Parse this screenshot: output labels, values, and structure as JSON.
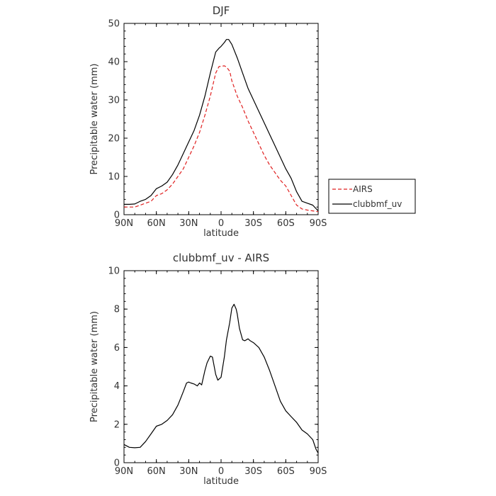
{
  "chart_data": [
    {
      "type": "line",
      "title": "DJF",
      "xlabel": "latitude",
      "ylabel": "Precipitable water (mm)",
      "x_direction": "north-to-south",
      "xlim": [
        90,
        -90
      ],
      "ylim": [
        0,
        50
      ],
      "x_ticks": [
        90,
        60,
        30,
        0,
        -30,
        -60,
        -90
      ],
      "x_tick_labels": [
        "90N",
        "60N",
        "30N",
        "0",
        "30S",
        "60S",
        "90S"
      ],
      "y_ticks": [
        0,
        10,
        20,
        30,
        40,
        50
      ],
      "y_tick_labels": [
        "0",
        "10",
        "20",
        "30",
        "40",
        "50"
      ],
      "legend": "right",
      "series": [
        {
          "name": "AIRS",
          "color": "#e02020",
          "dash": "dashed",
          "x": [
            90,
            85,
            80,
            75,
            70,
            65,
            60,
            55,
            50,
            45,
            40,
            35,
            30,
            25,
            20,
            15,
            10,
            5,
            2,
            0,
            -3,
            -5,
            -8,
            -10,
            -15,
            -20,
            -25,
            -30,
            -35,
            -40,
            -45,
            -50,
            -55,
            -60,
            -63,
            -65,
            -70,
            -75,
            -80,
            -85,
            -90
          ],
          "y": [
            2,
            2,
            2,
            2.5,
            3,
            3.5,
            5,
            5.5,
            6.5,
            8,
            10,
            12,
            15,
            18,
            21.5,
            26,
            31,
            37,
            38.7,
            38.8,
            38.9,
            38.6,
            37.5,
            35,
            31,
            28,
            24.5,
            21.5,
            18.5,
            15.5,
            13,
            11,
            9,
            7.5,
            6,
            5,
            2.5,
            1.5,
            1.2,
            1,
            0.8
          ]
        },
        {
          "name": "clubbmf_uv",
          "color": "#000000",
          "dash": "solid",
          "x": [
            90,
            85,
            80,
            75,
            70,
            65,
            60,
            55,
            50,
            45,
            40,
            35,
            30,
            25,
            20,
            15,
            10,
            5,
            2,
            0,
            -3,
            -5,
            -7,
            -10,
            -15,
            -20,
            -25,
            -30,
            -35,
            -40,
            -45,
            -50,
            -55,
            -60,
            -63,
            -65,
            -70,
            -75,
            -80,
            -85,
            -90
          ],
          "y": [
            2.7,
            2.7,
            2.8,
            3.5,
            4,
            5,
            6.8,
            7.5,
            8.5,
            10.5,
            13,
            16,
            19,
            22,
            26,
            31,
            37,
            42.5,
            43.5,
            44,
            45,
            45.8,
            45.8,
            44.5,
            41,
            37,
            33,
            30,
            27,
            24,
            21,
            18,
            15,
            12,
            10.5,
            9.5,
            6,
            3.5,
            3,
            2.5,
            1
          ]
        }
      ]
    },
    {
      "type": "line",
      "title": "clubbmf_uv - AIRS",
      "xlabel": "latitude",
      "ylabel": "Precipitable water (mm)",
      "x_direction": "north-to-south",
      "xlim": [
        90,
        -90
      ],
      "ylim": [
        0,
        10
      ],
      "x_ticks": [
        90,
        60,
        30,
        0,
        -30,
        -60,
        -90
      ],
      "x_tick_labels": [
        "90N",
        "60N",
        "30N",
        "0",
        "30S",
        "60S",
        "90S"
      ],
      "y_ticks": [
        0,
        2,
        4,
        6,
        8,
        10
      ],
      "y_tick_labels": [
        "0",
        "2",
        "4",
        "6",
        "8",
        "10"
      ],
      "series": [
        {
          "color": "#000000",
          "dash": "solid",
          "x": [
            90,
            85,
            80,
            75,
            70,
            65,
            60,
            55,
            50,
            45,
            40,
            35,
            32,
            30,
            28,
            25,
            22,
            20,
            18,
            15,
            13,
            10,
            8,
            5,
            3,
            0,
            -3,
            -5,
            -8,
            -10,
            -12,
            -14,
            -15,
            -17,
            -20,
            -22,
            -25,
            -27,
            -30,
            -35,
            -40,
            -45,
            -50,
            -55,
            -60,
            -65,
            -70,
            -75,
            -80,
            -85,
            -88,
            -90
          ],
          "y": [
            0.95,
            0.8,
            0.78,
            0.8,
            1.1,
            1.5,
            1.9,
            2.0,
            2.2,
            2.5,
            3.0,
            3.7,
            4.15,
            4.2,
            4.15,
            4.1,
            4.0,
            4.15,
            4.05,
            4.8,
            5.2,
            5.55,
            5.5,
            4.6,
            4.3,
            4.45,
            5.5,
            6.4,
            7.3,
            8.05,
            8.25,
            8.0,
            7.75,
            7.0,
            6.4,
            6.35,
            6.45,
            6.35,
            6.25,
            6.0,
            5.5,
            4.8,
            4.0,
            3.2,
            2.7,
            2.4,
            2.1,
            1.7,
            1.5,
            1.2,
            0.7,
            0.5
          ]
        }
      ]
    }
  ]
}
